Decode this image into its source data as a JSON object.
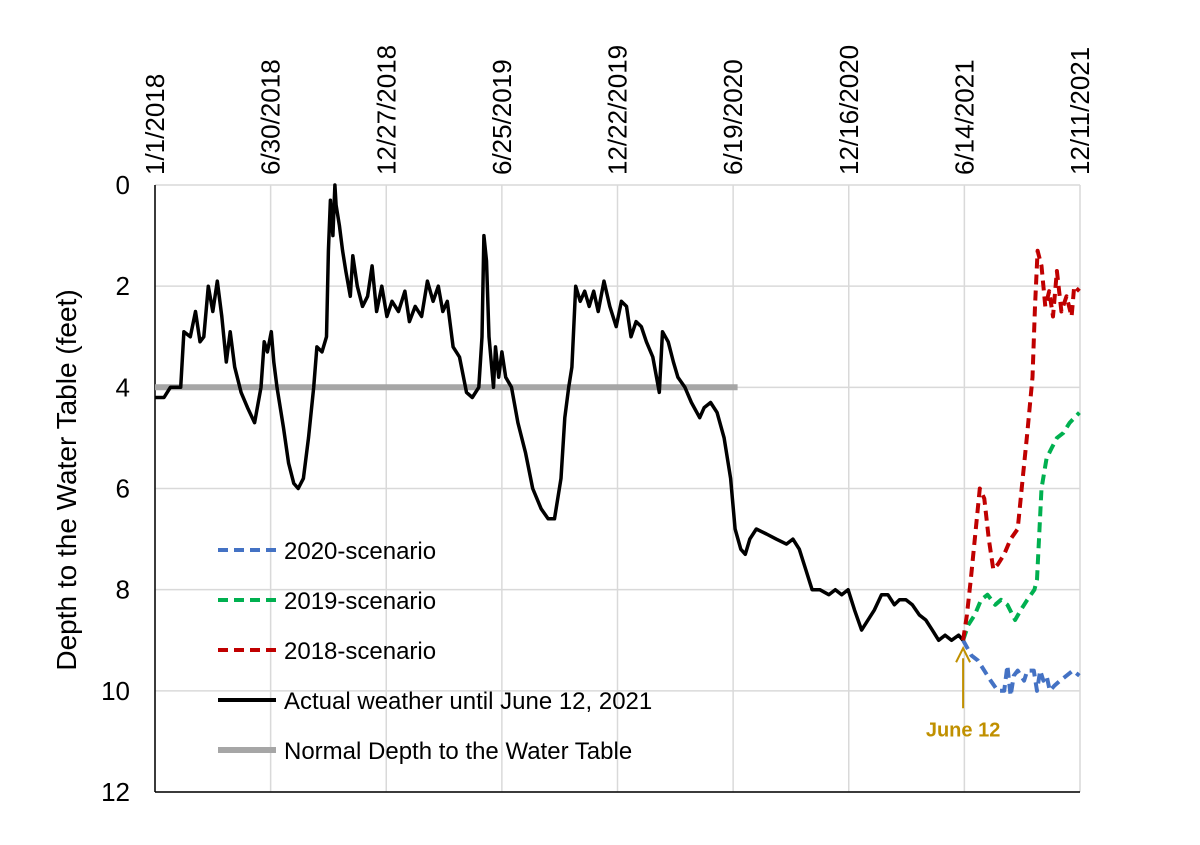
{
  "chart_data": {
    "type": "line",
    "title": "",
    "ylabel": "Depth to the Water Table (feet)",
    "xlabel": "",
    "ylim": [
      0,
      12
    ],
    "y_inverted": true,
    "y_ticks": [
      "0",
      "2",
      "4",
      "6",
      "8",
      "10",
      "12"
    ],
    "x_range": [
      "2018-01-01",
      "2021-12-11"
    ],
    "x_ticks": [
      {
        "date": "2018-01-01",
        "label": "1/1/2018"
      },
      {
        "date": "2018-06-30",
        "label": "6/30/2018"
      },
      {
        "date": "2018-12-27",
        "label": "12/27/2018"
      },
      {
        "date": "2019-06-25",
        "label": "6/25/2019"
      },
      {
        "date": "2019-12-22",
        "label": "12/22/2019"
      },
      {
        "date": "2020-06-19",
        "label": "6/19/2020"
      },
      {
        "date": "2020-12-16",
        "label": "12/16/2020"
      },
      {
        "date": "2021-06-14",
        "label": "6/14/2021"
      },
      {
        "date": "2021-12-11",
        "label": "12/11/2021"
      }
    ],
    "grid": true,
    "legend": "bottom-left",
    "series": [
      {
        "name": "2020-scenario",
        "color": "#4472c4",
        "style": "dashed",
        "points": [
          [
            "2021-06-12",
            9.0
          ],
          [
            "2021-06-25",
            9.3
          ],
          [
            "2021-07-05",
            9.4
          ],
          [
            "2021-07-15",
            9.6
          ],
          [
            "2021-07-25",
            9.8
          ],
          [
            "2021-08-05",
            10.0
          ],
          [
            "2021-08-15",
            10.0
          ],
          [
            "2021-08-20",
            9.5
          ],
          [
            "2021-08-25",
            10.1
          ],
          [
            "2021-08-30",
            9.7
          ],
          [
            "2021-09-05",
            9.6
          ],
          [
            "2021-09-15",
            9.8
          ],
          [
            "2021-09-20",
            9.6
          ],
          [
            "2021-09-30",
            9.6
          ],
          [
            "2021-10-05",
            10.0
          ],
          [
            "2021-10-10",
            9.6
          ],
          [
            "2021-10-15",
            9.8
          ],
          [
            "2021-10-20",
            9.7
          ],
          [
            "2021-10-25",
            10.0
          ],
          [
            "2021-11-01",
            9.9
          ],
          [
            "2021-11-10",
            9.8
          ],
          [
            "2021-11-20",
            9.7
          ],
          [
            "2021-11-30",
            9.6
          ],
          [
            "2021-12-10",
            9.7
          ]
        ]
      },
      {
        "name": "2019-scenario",
        "color": "#00b050",
        "style": "dashed",
        "points": [
          [
            "2021-06-12",
            9.0
          ],
          [
            "2021-06-20",
            8.7
          ],
          [
            "2021-06-30",
            8.5
          ],
          [
            "2021-07-10",
            8.2
          ],
          [
            "2021-07-20",
            8.1
          ],
          [
            "2021-08-01",
            8.3
          ],
          [
            "2021-08-10",
            8.2
          ],
          [
            "2021-08-20",
            8.3
          ],
          [
            "2021-09-01",
            8.6
          ],
          [
            "2021-09-10",
            8.4
          ],
          [
            "2021-09-20",
            8.2
          ],
          [
            "2021-10-01",
            8.0
          ],
          [
            "2021-10-05",
            7.8
          ],
          [
            "2021-10-12",
            6.0
          ],
          [
            "2021-10-20",
            5.4
          ],
          [
            "2021-10-28",
            5.2
          ],
          [
            "2021-11-05",
            5.0
          ],
          [
            "2021-11-15",
            4.9
          ],
          [
            "2021-11-25",
            4.7
          ],
          [
            "2021-12-10",
            4.5
          ]
        ]
      },
      {
        "name": "2018-scenario",
        "color": "#c00000",
        "style": "dashed",
        "points": [
          [
            "2021-06-12",
            9.0
          ],
          [
            "2021-06-18",
            8.5
          ],
          [
            "2021-06-24",
            7.8
          ],
          [
            "2021-07-01",
            6.9
          ],
          [
            "2021-07-08",
            6.0
          ],
          [
            "2021-07-15",
            6.2
          ],
          [
            "2021-07-22",
            7.0
          ],
          [
            "2021-07-29",
            7.6
          ],
          [
            "2021-08-05",
            7.5
          ],
          [
            "2021-08-15",
            7.3
          ],
          [
            "2021-08-25",
            7.0
          ],
          [
            "2021-09-05",
            6.8
          ],
          [
            "2021-09-12",
            5.9
          ],
          [
            "2021-09-20",
            4.9
          ],
          [
            "2021-09-28",
            3.8
          ],
          [
            "2021-10-02",
            2.4
          ],
          [
            "2021-10-06",
            1.3
          ],
          [
            "2021-10-12",
            1.6
          ],
          [
            "2021-10-18",
            2.4
          ],
          [
            "2021-10-24",
            2.1
          ],
          [
            "2021-10-30",
            2.6
          ],
          [
            "2021-11-05",
            1.7
          ],
          [
            "2021-11-12",
            2.5
          ],
          [
            "2021-11-20",
            2.2
          ],
          [
            "2021-11-28",
            2.6
          ],
          [
            "2021-12-02",
            2.0
          ],
          [
            "2021-12-10",
            2.1
          ]
        ]
      },
      {
        "name": "Actual weather until June 12, 2021",
        "color": "#000000",
        "style": "solid",
        "points": [
          [
            "2018-01-01",
            4.2
          ],
          [
            "2018-01-15",
            4.2
          ],
          [
            "2018-01-25",
            4.0
          ],
          [
            "2018-02-10",
            4.0
          ],
          [
            "2018-02-15",
            2.9
          ],
          [
            "2018-02-25",
            3.0
          ],
          [
            "2018-03-05",
            2.5
          ],
          [
            "2018-03-12",
            3.1
          ],
          [
            "2018-03-18",
            3.0
          ],
          [
            "2018-03-25",
            2.0
          ],
          [
            "2018-04-01",
            2.5
          ],
          [
            "2018-04-08",
            1.9
          ],
          [
            "2018-04-15",
            2.6
          ],
          [
            "2018-04-22",
            3.5
          ],
          [
            "2018-04-28",
            2.9
          ],
          [
            "2018-05-05",
            3.6
          ],
          [
            "2018-05-15",
            4.1
          ],
          [
            "2018-05-25",
            4.4
          ],
          [
            "2018-06-05",
            4.7
          ],
          [
            "2018-06-15",
            4.0
          ],
          [
            "2018-06-20",
            3.1
          ],
          [
            "2018-06-25",
            3.3
          ],
          [
            "2018-07-01",
            2.9
          ],
          [
            "2018-07-05",
            3.5
          ],
          [
            "2018-07-10",
            4.0
          ],
          [
            "2018-07-20",
            4.8
          ],
          [
            "2018-07-28",
            5.5
          ],
          [
            "2018-08-05",
            5.9
          ],
          [
            "2018-08-12",
            6.0
          ],
          [
            "2018-08-20",
            5.8
          ],
          [
            "2018-08-28",
            5.0
          ],
          [
            "2018-09-05",
            4.0
          ],
          [
            "2018-09-10",
            3.2
          ],
          [
            "2018-09-18",
            3.3
          ],
          [
            "2018-09-25",
            3.0
          ],
          [
            "2018-09-28",
            1.3
          ],
          [
            "2018-10-01",
            0.3
          ],
          [
            "2018-10-05",
            1.0
          ],
          [
            "2018-10-08",
            0.0
          ],
          [
            "2018-10-10",
            0.4
          ],
          [
            "2018-10-15",
            0.8
          ],
          [
            "2018-10-20",
            1.3
          ],
          [
            "2018-10-25",
            1.7
          ],
          [
            "2018-11-01",
            2.2
          ],
          [
            "2018-11-05",
            1.4
          ],
          [
            "2018-11-12",
            2.0
          ],
          [
            "2018-11-20",
            2.4
          ],
          [
            "2018-11-28",
            2.2
          ],
          [
            "2018-12-05",
            1.6
          ],
          [
            "2018-12-12",
            2.5
          ],
          [
            "2018-12-20",
            2.0
          ],
          [
            "2018-12-28",
            2.6
          ],
          [
            "2019-01-05",
            2.3
          ],
          [
            "2019-01-15",
            2.5
          ],
          [
            "2019-01-25",
            2.1
          ],
          [
            "2019-02-01",
            2.7
          ],
          [
            "2019-02-10",
            2.4
          ],
          [
            "2019-02-20",
            2.6
          ],
          [
            "2019-03-01",
            1.9
          ],
          [
            "2019-03-10",
            2.3
          ],
          [
            "2019-03-18",
            2.0
          ],
          [
            "2019-03-25",
            2.5
          ],
          [
            "2019-04-01",
            2.3
          ],
          [
            "2019-04-10",
            3.2
          ],
          [
            "2019-04-20",
            3.4
          ],
          [
            "2019-05-01",
            4.1
          ],
          [
            "2019-05-10",
            4.2
          ],
          [
            "2019-05-20",
            4.0
          ],
          [
            "2019-05-25",
            3.0
          ],
          [
            "2019-05-28",
            1.0
          ],
          [
            "2019-06-01",
            1.5
          ],
          [
            "2019-06-05",
            3.0
          ],
          [
            "2019-06-12",
            4.0
          ],
          [
            "2019-06-15",
            3.2
          ],
          [
            "2019-06-20",
            3.8
          ],
          [
            "2019-06-25",
            3.3
          ],
          [
            "2019-07-01",
            3.8
          ],
          [
            "2019-07-10",
            4.0
          ],
          [
            "2019-07-20",
            4.7
          ],
          [
            "2019-08-01",
            5.3
          ],
          [
            "2019-08-12",
            6.0
          ],
          [
            "2019-08-25",
            6.4
          ],
          [
            "2019-09-05",
            6.6
          ],
          [
            "2019-09-15",
            6.6
          ],
          [
            "2019-09-25",
            5.8
          ],
          [
            "2019-10-01",
            4.6
          ],
          [
            "2019-10-07",
            4.0
          ],
          [
            "2019-10-12",
            3.6
          ],
          [
            "2019-10-18",
            2.0
          ],
          [
            "2019-10-25",
            2.3
          ],
          [
            "2019-11-01",
            2.1
          ],
          [
            "2019-11-08",
            2.4
          ],
          [
            "2019-11-15",
            2.1
          ],
          [
            "2019-11-22",
            2.5
          ],
          [
            "2019-12-01",
            1.9
          ],
          [
            "2019-12-10",
            2.4
          ],
          [
            "2019-12-20",
            2.8
          ],
          [
            "2019-12-28",
            2.3
          ],
          [
            "2020-01-05",
            2.4
          ],
          [
            "2020-01-12",
            3.0
          ],
          [
            "2020-01-20",
            2.7
          ],
          [
            "2020-01-28",
            2.8
          ],
          [
            "2020-02-05",
            3.1
          ],
          [
            "2020-02-15",
            3.4
          ],
          [
            "2020-02-25",
            4.1
          ],
          [
            "2020-03-01",
            2.9
          ],
          [
            "2020-03-10",
            3.1
          ],
          [
            "2020-03-18",
            3.5
          ],
          [
            "2020-03-25",
            3.8
          ],
          [
            "2020-04-05",
            4.0
          ],
          [
            "2020-04-15",
            4.3
          ],
          [
            "2020-04-28",
            4.6
          ],
          [
            "2020-05-05",
            4.4
          ],
          [
            "2020-05-15",
            4.3
          ],
          [
            "2020-05-25",
            4.5
          ],
          [
            "2020-06-05",
            5.0
          ],
          [
            "2020-06-15",
            5.8
          ],
          [
            "2020-06-22",
            6.8
          ],
          [
            "2020-07-01",
            7.2
          ],
          [
            "2020-07-08",
            7.3
          ],
          [
            "2020-07-15",
            7.0
          ],
          [
            "2020-07-25",
            6.8
          ],
          [
            "2020-08-10",
            6.9
          ],
          [
            "2020-08-25",
            7.0
          ],
          [
            "2020-09-10",
            7.1
          ],
          [
            "2020-09-20",
            7.0
          ],
          [
            "2020-09-30",
            7.2
          ],
          [
            "2020-10-10",
            7.6
          ],
          [
            "2020-10-20",
            8.0
          ],
          [
            "2020-11-01",
            8.0
          ],
          [
            "2020-11-15",
            8.1
          ],
          [
            "2020-11-25",
            8.0
          ],
          [
            "2020-12-05",
            8.1
          ],
          [
            "2020-12-15",
            8.0
          ],
          [
            "2020-12-25",
            8.4
          ],
          [
            "2021-01-05",
            8.8
          ],
          [
            "2021-01-15",
            8.6
          ],
          [
            "2021-01-25",
            8.4
          ],
          [
            "2021-02-05",
            8.1
          ],
          [
            "2021-02-15",
            8.1
          ],
          [
            "2021-02-25",
            8.3
          ],
          [
            "2021-03-05",
            8.2
          ],
          [
            "2021-03-15",
            8.2
          ],
          [
            "2021-03-25",
            8.3
          ],
          [
            "2021-04-05",
            8.5
          ],
          [
            "2021-04-15",
            8.6
          ],
          [
            "2021-04-25",
            8.8
          ],
          [
            "2021-05-05",
            9.0
          ],
          [
            "2021-05-15",
            8.9
          ],
          [
            "2021-05-25",
            9.0
          ],
          [
            "2021-06-05",
            8.9
          ],
          [
            "2021-06-12",
            9.0
          ]
        ]
      },
      {
        "name": "Normal Depth to the Water Table",
        "color": "#a6a6a6",
        "style": "solid",
        "points": [
          [
            "2018-01-01",
            4.0
          ],
          [
            "2020-06-26",
            4.0
          ]
        ]
      }
    ],
    "annotations": [
      {
        "text": "June 12",
        "date": "2021-06-12",
        "y": 9.0,
        "color": "#c09000"
      }
    ]
  }
}
